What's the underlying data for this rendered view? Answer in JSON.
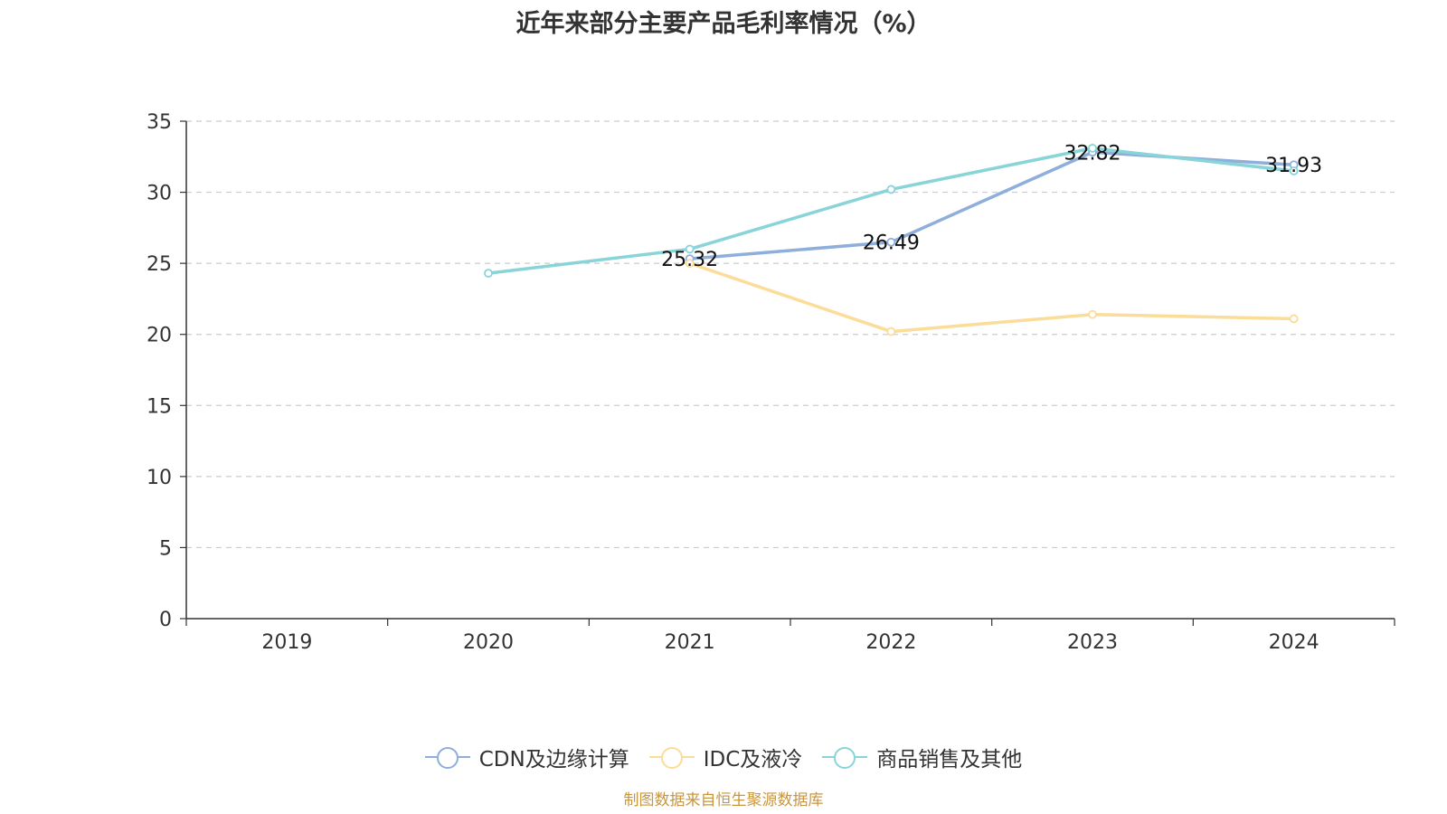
{
  "chart_data": {
    "type": "line",
    "title": "近年来部分主要产品毛利率情况（%）",
    "categories": [
      "2019",
      "2020",
      "2021",
      "2022",
      "2023",
      "2024"
    ],
    "ylim": [
      0,
      35
    ],
    "yticks": [
      "0",
      "5",
      "10",
      "15",
      "20",
      "25",
      "30",
      "35"
    ],
    "grid": true,
    "legend_position": "bottom",
    "series": [
      {
        "name": "CDN及边缘计算",
        "color": "#8eaedb",
        "values": [
          null,
          null,
          25.32,
          26.49,
          32.82,
          31.93
        ],
        "labels": [
          "",
          "",
          "25.32",
          "26.49",
          "32.82",
          "31.93"
        ]
      },
      {
        "name": "IDC及液冷",
        "color": "#fbdc98",
        "values": [
          null,
          null,
          25.0,
          20.2,
          21.4,
          21.1
        ]
      },
      {
        "name": "商品销售及其他",
        "color": "#88d4d8",
        "values": [
          null,
          24.3,
          26.0,
          30.2,
          33.1,
          31.5
        ]
      }
    ]
  },
  "source": "制图数据来自恒生聚源数据库"
}
